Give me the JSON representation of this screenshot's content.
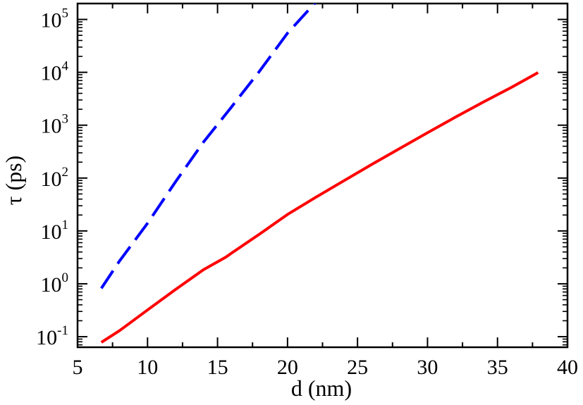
{
  "chart_data": {
    "type": "line",
    "xlabel": "d (nm)",
    "ylabel": "τ (ps)",
    "xlim": [
      5,
      40
    ],
    "ylim": [
      0.0631,
      200000
    ],
    "yscale": "log",
    "grid": false,
    "x_major_ticks": [
      5,
      10,
      15,
      20,
      25,
      30,
      35,
      40
    ],
    "x_tick_labels": [
      "5",
      "10",
      "15",
      "20",
      "25",
      "30",
      "35",
      "40"
    ],
    "x_minor_ticks": [
      7.5,
      12.5,
      17.5,
      22.5,
      27.5,
      32.5,
      37.5
    ],
    "y_major_ticks": [
      0.1,
      1,
      10,
      100,
      1000,
      10000,
      100000
    ],
    "y_tick_labels": [
      {
        "base": "10",
        "exp": "-1"
      },
      {
        "base": "10",
        "exp": "0"
      },
      {
        "base": "10",
        "exp": "1"
      },
      {
        "base": "10",
        "exp": "2"
      },
      {
        "base": "10",
        "exp": "3"
      },
      {
        "base": "10",
        "exp": "4"
      },
      {
        "base": "10",
        "exp": "5"
      }
    ],
    "series": [
      {
        "color": "#ff0000",
        "style": "solid",
        "x": [
          6.7,
          8,
          10,
          12,
          14,
          15.6,
          16,
          18,
          20,
          22,
          24,
          26,
          28,
          30,
          32,
          34,
          36,
          37.9
        ],
        "y": [
          0.078,
          0.13,
          0.32,
          0.78,
          1.85,
          3.2,
          3.8,
          8.7,
          20.5,
          43,
          88,
          180,
          360,
          720,
          1420,
          2750,
          5200,
          9900
        ]
      },
      {
        "color": "#0000ff",
        "style": "dashed",
        "x": [
          6.7,
          8,
          10,
          12,
          14,
          15.9,
          18,
          20,
          22
        ],
        "y": [
          0.82,
          2.7,
          14,
          85,
          480,
          2050,
          10500,
          55000,
          210000
        ]
      }
    ]
  }
}
